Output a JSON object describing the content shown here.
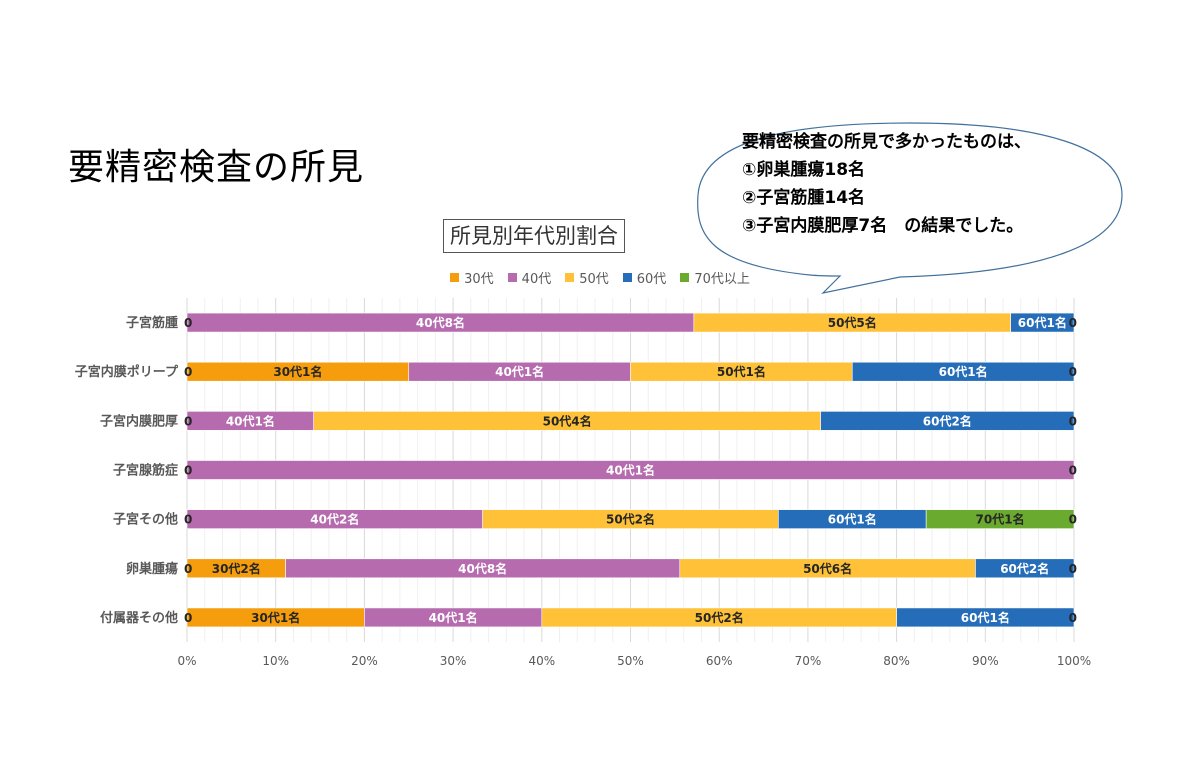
{
  "slide_title": "要精密検査の所見",
  "callout": {
    "lines": [
      "要精密検査の所見で多かったものは、",
      "①卵巣腫瘍18名",
      "②子宮筋腫14名",
      "③子宮内膜肥厚7名　の結果でした。"
    ]
  },
  "colors": {
    "30代": "#F59D0C",
    "40代": "#B56BAE",
    "50代": "#FEC137",
    "60代": "#256DB9",
    "70代以上": "#6AAA2F"
  },
  "chart_data": {
    "type": "bar",
    "orientation": "horizontal",
    "stacked": "percent",
    "title": "所見別年代別割合",
    "legend_position": "top",
    "xlim": [
      0,
      100
    ],
    "x_ticks": [
      "0%",
      "10%",
      "20%",
      "30%",
      "40%",
      "50%",
      "60%",
      "70%",
      "80%",
      "90%",
      "100%"
    ],
    "grid": true,
    "categories": [
      "子宮筋腫",
      "子宮内膜ポリープ",
      "子宮内膜肥厚",
      "子宮腺筋症",
      "子宮その他",
      "卵巣腫瘍",
      "付属器その他"
    ],
    "zero_label": "0",
    "series": [
      {
        "name": "30代",
        "values": [
          0,
          1,
          0,
          0,
          0,
          2,
          1
        ],
        "labels": [
          "",
          "30代1名",
          "",
          "",
          "",
          "30代2名",
          "30代1名"
        ]
      },
      {
        "name": "40代",
        "values": [
          8,
          1,
          1,
          1,
          2,
          8,
          1
        ],
        "labels": [
          "40代8名",
          "40代1名",
          "40代1名",
          "40代1名",
          "40代2名",
          "40代8名",
          "40代1名"
        ]
      },
      {
        "name": "50代",
        "values": [
          5,
          1,
          4,
          0,
          2,
          6,
          2
        ],
        "labels": [
          "50代5名",
          "50代1名",
          "50代4名",
          "",
          "50代2名",
          "50代6名",
          "50代2名"
        ]
      },
      {
        "name": "60代",
        "values": [
          1,
          1,
          2,
          0,
          1,
          2,
          1
        ],
        "labels": [
          "60代1名",
          "60代1名",
          "60代2名",
          "",
          "60代1名",
          "60代2名",
          "60代1名"
        ]
      },
      {
        "name": "70代以上",
        "values": [
          0,
          0,
          0,
          0,
          1,
          0,
          0
        ],
        "labels": [
          "",
          "",
          "",
          "",
          "70代1名",
          "",
          ""
        ]
      }
    ]
  }
}
